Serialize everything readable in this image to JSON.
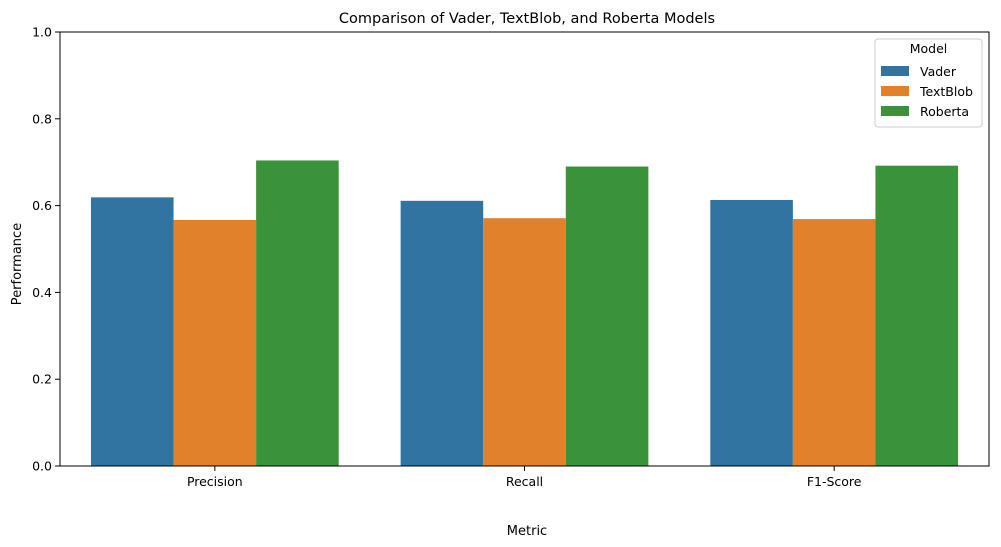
{
  "chart_data": {
    "type": "bar",
    "title": "Comparison of Vader, TextBlob, and Roberta Models",
    "xlabel": "Metric",
    "ylabel": "Performance",
    "categories": [
      "Precision",
      "Recall",
      "F1-Score"
    ],
    "series": [
      {
        "name": "Vader",
        "color": "#3274a1",
        "values": [
          0.619,
          0.611,
          0.613
        ]
      },
      {
        "name": "TextBlob",
        "color": "#e1812c",
        "values": [
          0.567,
          0.571,
          0.569
        ]
      },
      {
        "name": "Roberta",
        "color": "#3a923a",
        "values": [
          0.704,
          0.69,
          0.692
        ]
      }
    ],
    "ylim": [
      0,
      1.0
    ],
    "yticks": [
      "0.0",
      "0.2",
      "0.4",
      "0.6",
      "0.8",
      "1.0"
    ],
    "legend": {
      "title": "Model",
      "position": "top-right"
    },
    "grid": false
  }
}
